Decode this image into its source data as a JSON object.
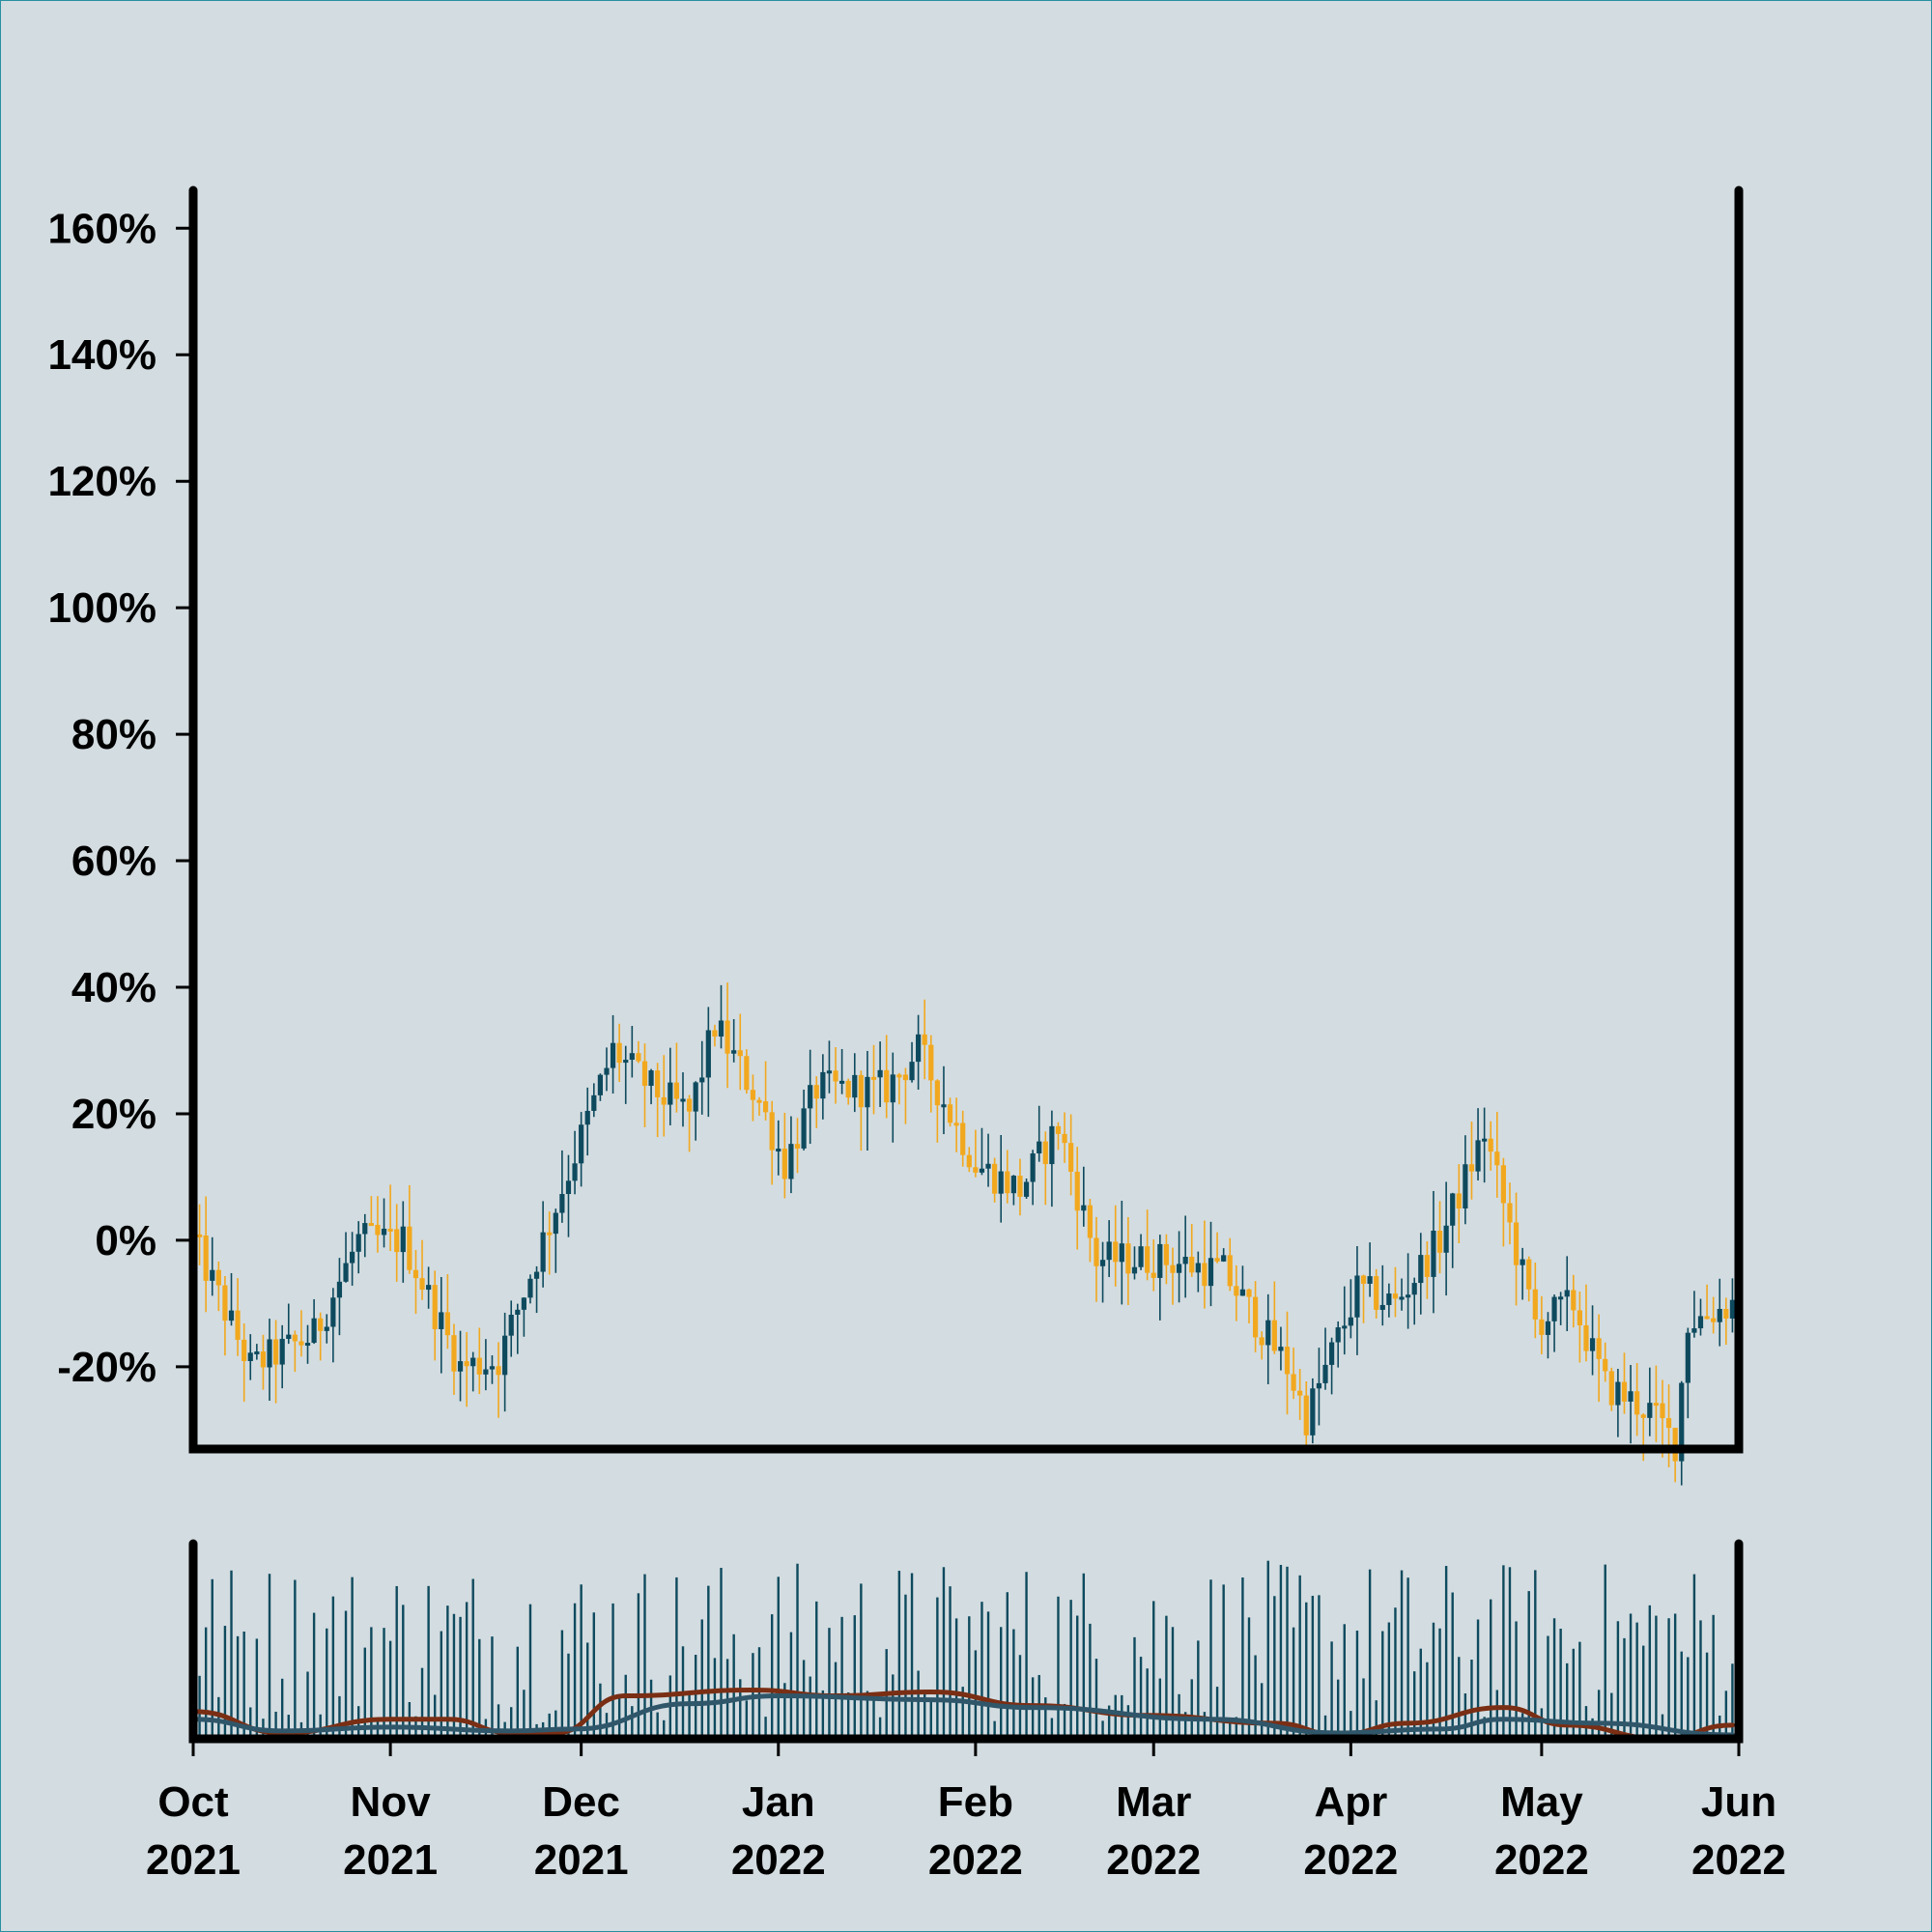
{
  "chart_data": {
    "type": "candlestick",
    "date_range": [
      "2021-10-01",
      "2022-05-31"
    ],
    "ylim": [
      -33,
      166
    ],
    "y_ticks": [
      {
        "value": 160,
        "label": "160%"
      },
      {
        "value": 140,
        "label": "140%"
      },
      {
        "value": 120,
        "label": "120%"
      },
      {
        "value": 100,
        "label": "100%"
      },
      {
        "value": 80,
        "label": "80%"
      },
      {
        "value": 60,
        "label": "60%"
      },
      {
        "value": 40,
        "label": "40%"
      },
      {
        "value": 20,
        "label": "20%"
      },
      {
        "value": 0,
        "label": "0%"
      },
      {
        "value": -20,
        "label": "-20%"
      }
    ],
    "x_ticks": [
      {
        "date": "2021-10-01",
        "month": "Oct",
        "year": "2021"
      },
      {
        "date": "2021-11-01",
        "month": "Nov",
        "year": "2021"
      },
      {
        "date": "2021-12-01",
        "month": "Dec",
        "year": "2021"
      },
      {
        "date": "2022-01-01",
        "month": "Jan",
        "year": "2022"
      },
      {
        "date": "2022-02-01",
        "month": "Feb",
        "year": "2022"
      },
      {
        "date": "2022-03-01",
        "month": "Mar",
        "year": "2022"
      },
      {
        "date": "2022-04-01",
        "month": "Apr",
        "year": "2022"
      },
      {
        "date": "2022-05-01",
        "month": "May",
        "year": "2022"
      },
      {
        "date": "2022-06-01",
        "month": "Jun",
        "year": "2022"
      }
    ],
    "price_path_anchors": [
      {
        "date": "2021-10-01",
        "value": 0
      },
      {
        "date": "2021-10-10",
        "value": -20
      },
      {
        "date": "2021-10-20",
        "value": -15
      },
      {
        "date": "2021-10-27",
        "value": 0
      },
      {
        "date": "2021-11-03",
        "value": 0
      },
      {
        "date": "2021-11-12",
        "value": -20
      },
      {
        "date": "2021-11-18",
        "value": -19
      },
      {
        "date": "2021-11-25",
        "value": 0
      },
      {
        "date": "2021-12-06",
        "value": 30
      },
      {
        "date": "2021-12-12",
        "value": 24
      },
      {
        "date": "2021-12-18",
        "value": 20
      },
      {
        "date": "2021-12-22",
        "value": 34
      },
      {
        "date": "2021-12-29",
        "value": 22
      },
      {
        "date": "2022-01-02",
        "value": 12
      },
      {
        "date": "2022-01-07",
        "value": 24
      },
      {
        "date": "2022-01-18",
        "value": 24
      },
      {
        "date": "2022-01-23",
        "value": 30
      },
      {
        "date": "2022-02-01",
        "value": 12
      },
      {
        "date": "2022-02-08",
        "value": 8
      },
      {
        "date": "2022-02-14",
        "value": 18
      },
      {
        "date": "2022-02-20",
        "value": -3
      },
      {
        "date": "2022-03-02",
        "value": -3
      },
      {
        "date": "2022-03-12",
        "value": -5
      },
      {
        "date": "2022-03-22",
        "value": -20
      },
      {
        "date": "2022-03-25",
        "value": -28
      },
      {
        "date": "2022-04-02",
        "value": -8
      },
      {
        "date": "2022-04-08",
        "value": -10
      },
      {
        "date": "2022-04-15",
        "value": 0
      },
      {
        "date": "2022-04-22",
        "value": 17
      },
      {
        "date": "2022-04-30",
        "value": -13
      },
      {
        "date": "2022-05-06",
        "value": -10
      },
      {
        "date": "2022-05-11",
        "value": -23
      },
      {
        "date": "2022-05-18",
        "value": -27
      },
      {
        "date": "2022-05-22",
        "value": -32
      },
      {
        "date": "2022-05-24",
        "value": -13
      },
      {
        "date": "2022-05-31",
        "value": -10
      }
    ],
    "up_color": "#0e4a5e",
    "down_color": "#f2a81e",
    "volume": {
      "bar_color": "#0e4a5e",
      "moving_averages": [
        {
          "color": "#7a2e14",
          "values": [
            {
              "date": "2021-10-01",
              "value": 0.14
            },
            {
              "date": "2021-10-15",
              "value": 0.03
            },
            {
              "date": "2021-11-01",
              "value": 0.1
            },
            {
              "date": "2021-11-10",
              "value": 0.1
            },
            {
              "date": "2021-11-20",
              "value": 0.03
            },
            {
              "date": "2021-11-27",
              "value": 0.03
            },
            {
              "date": "2021-12-08",
              "value": 0.22
            },
            {
              "date": "2021-12-28",
              "value": 0.25
            },
            {
              "date": "2022-01-10",
              "value": 0.22
            },
            {
              "date": "2022-01-25",
              "value": 0.24
            },
            {
              "date": "2022-02-10",
              "value": 0.17
            },
            {
              "date": "2022-02-28",
              "value": 0.12
            },
            {
              "date": "2022-03-20",
              "value": 0.08
            },
            {
              "date": "2022-03-30",
              "value": 0.02
            },
            {
              "date": "2022-04-10",
              "value": 0.08
            },
            {
              "date": "2022-04-25",
              "value": 0.16
            },
            {
              "date": "2022-05-05",
              "value": 0.07
            },
            {
              "date": "2022-05-20",
              "value": 0.0
            },
            {
              "date": "2022-05-31",
              "value": 0.07
            }
          ]
        },
        {
          "color": "#30566a",
          "values": [
            {
              "date": "2021-10-01",
              "value": 0.1
            },
            {
              "date": "2021-10-15",
              "value": 0.04
            },
            {
              "date": "2021-11-01",
              "value": 0.06
            },
            {
              "date": "2021-11-20",
              "value": 0.04
            },
            {
              "date": "2021-11-30",
              "value": 0.05
            },
            {
              "date": "2021-12-18",
              "value": 0.18
            },
            {
              "date": "2022-01-01",
              "value": 0.22
            },
            {
              "date": "2022-01-25",
              "value": 0.2
            },
            {
              "date": "2022-02-10",
              "value": 0.16
            },
            {
              "date": "2022-03-10",
              "value": 0.1
            },
            {
              "date": "2022-03-30",
              "value": 0.03
            },
            {
              "date": "2022-04-15",
              "value": 0.05
            },
            {
              "date": "2022-04-25",
              "value": 0.1
            },
            {
              "date": "2022-05-10",
              "value": 0.08
            },
            {
              "date": "2022-05-31",
              "value": 0.02
            }
          ]
        }
      ]
    }
  }
}
